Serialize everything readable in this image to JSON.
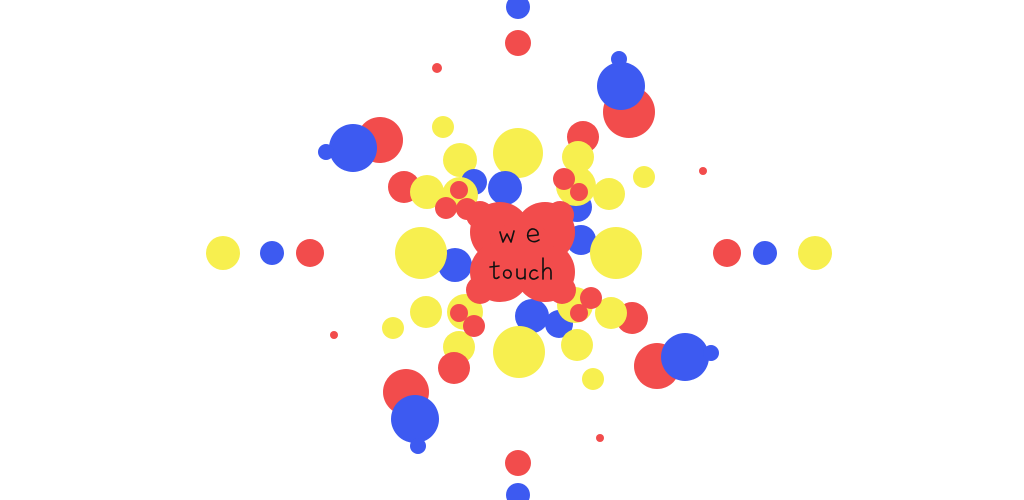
{
  "colors": {
    "background": "#ffffff",
    "red": "#f24c4c",
    "blue": "#3d5af1",
    "yellow": "#f7ef4f",
    "ink": "#111111"
  },
  "artwork": {
    "handwritten_text_line1": "we",
    "handwritten_text_line2": "touch"
  }
}
